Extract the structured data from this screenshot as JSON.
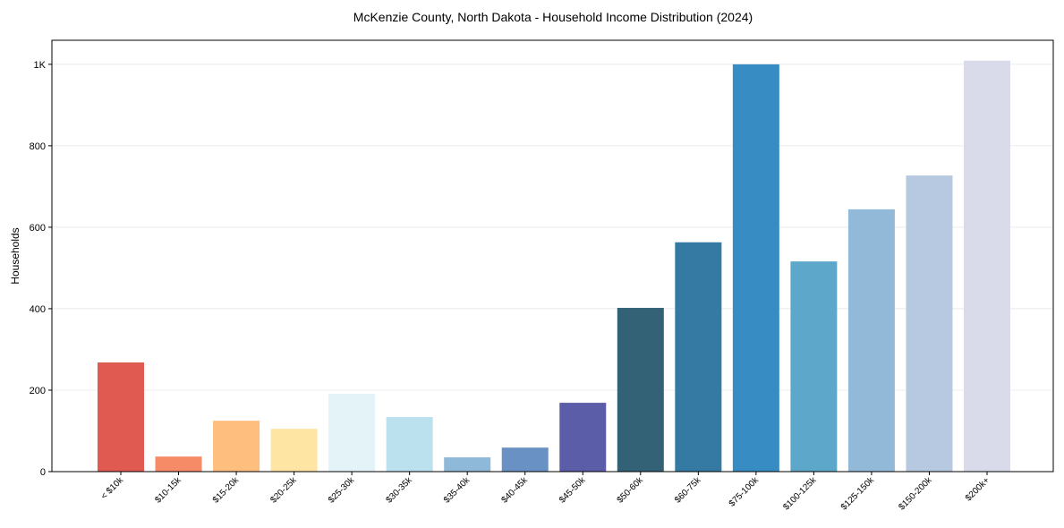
{
  "chart_data": {
    "type": "bar",
    "title": "McKenzie County, North Dakota - Household Income Distribution (2024)",
    "xlabel": "",
    "ylabel": "Households",
    "ylim": [
      0,
      1059
    ],
    "grid": "y",
    "yticks": [
      0,
      200,
      400,
      600,
      800,
      1000
    ],
    "ytick_labels": [
      "0",
      "200",
      "400",
      "600",
      "800",
      "1K"
    ],
    "categories": [
      "< $10k",
      "$10-15k",
      "$15-20k",
      "$20-25k",
      "$25-30k",
      "$30-35k",
      "$35-40k",
      "$40-45k",
      "$45-50k",
      "$50-60k",
      "$60-75k",
      "$75-100k",
      "$100-125k",
      "$125-150k",
      "$150-200k",
      "$200k+"
    ],
    "values": [
      268,
      37,
      125,
      105,
      191,
      134,
      35,
      59,
      169,
      402,
      563,
      1000,
      516,
      644,
      727,
      1009
    ],
    "colors": [
      "#e05a52",
      "#f68b67",
      "#fdbe7e",
      "#fee5a3",
      "#e3f3f8",
      "#bce1ee",
      "#8fb9d9",
      "#6a91c3",
      "#5b5da9",
      "#336175",
      "#357aa3",
      "#378dc3",
      "#5ca7ca",
      "#93b9d9",
      "#b7c8e1",
      "#d9dbea"
    ]
  }
}
